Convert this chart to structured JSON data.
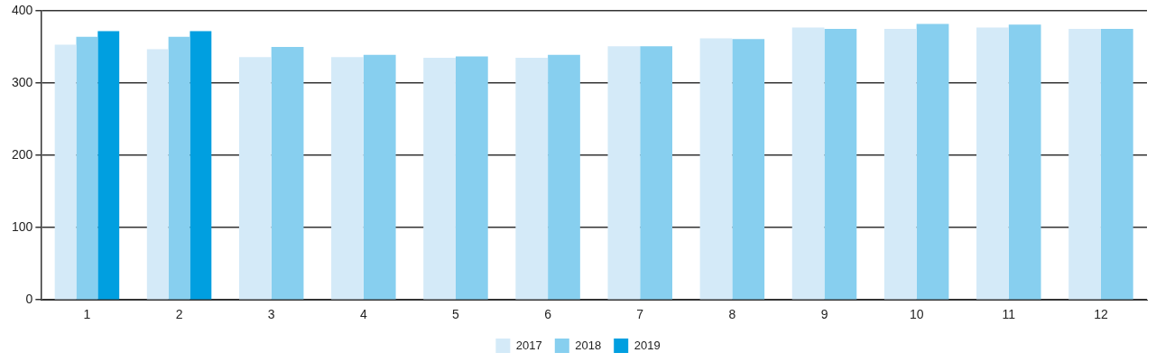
{
  "chart_data": {
    "type": "bar",
    "categories": [
      "1",
      "2",
      "3",
      "4",
      "5",
      "6",
      "7",
      "8",
      "9",
      "10",
      "11",
      "12"
    ],
    "series": [
      {
        "name": "2017",
        "color": "#d4eaf8",
        "values": [
          353,
          347,
          336,
          336,
          335,
          335,
          351,
          362,
          377,
          375,
          377,
          375
        ]
      },
      {
        "name": "2018",
        "color": "#87cfef",
        "values": [
          364,
          364,
          350,
          339,
          337,
          339,
          351,
          361,
          375,
          382,
          381,
          375
        ]
      },
      {
        "name": "2019",
        "color": "#009fe0",
        "values": [
          372,
          372,
          null,
          null,
          null,
          null,
          null,
          null,
          null,
          null,
          null,
          null
        ]
      }
    ],
    "ylim": [
      0,
      400
    ],
    "yticks": [
      0,
      100,
      200,
      300,
      400
    ],
    "grid": "y",
    "legend": "bottom"
  }
}
